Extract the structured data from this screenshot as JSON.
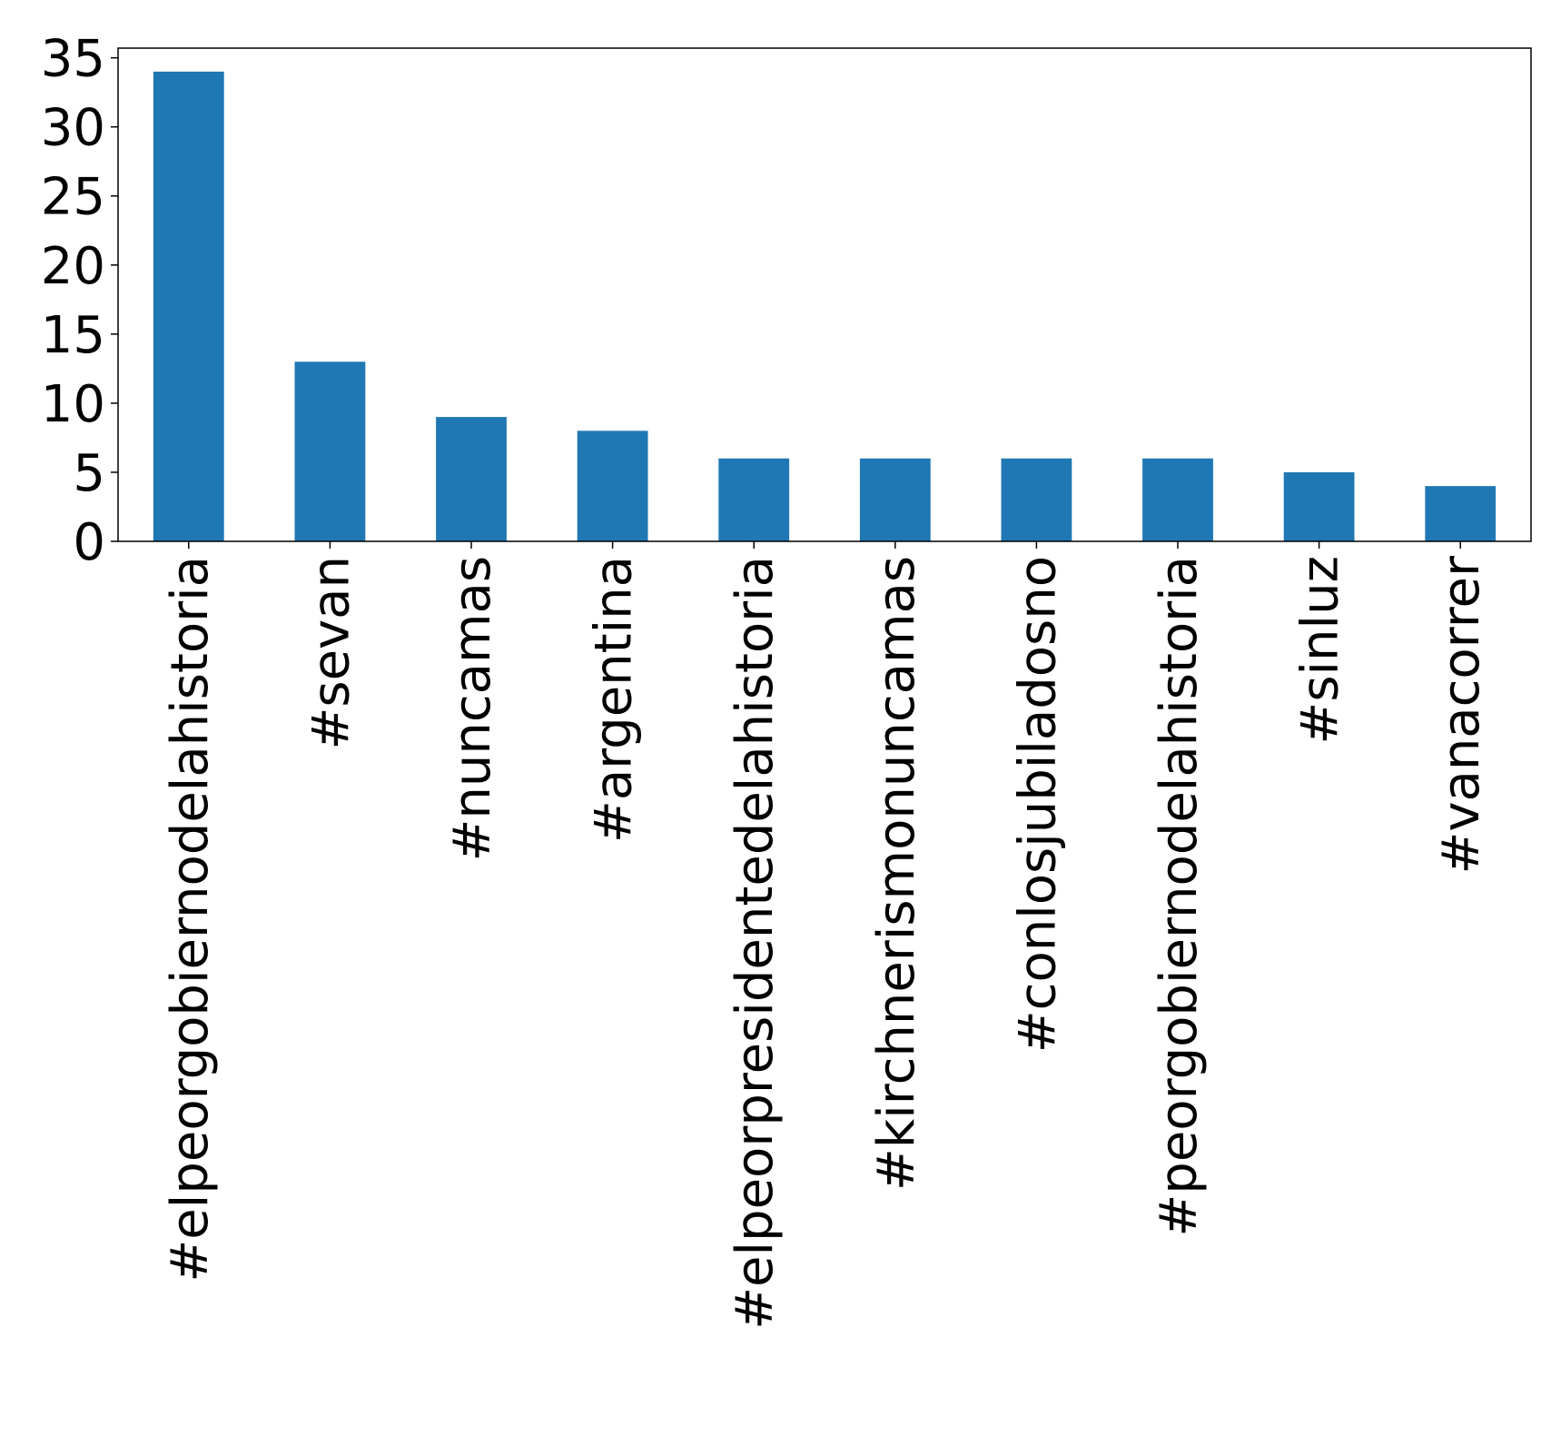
{
  "chart_data": {
    "type": "bar",
    "categories": [
      "#elpeorgobiernodelahistoria",
      "#sevan",
      "#nuncamas",
      "#argentina",
      "#elpeorpresidentedelahistoria",
      "#kirchnerismonuncamas",
      "#conlosjubiladosno",
      "#peorgobiernodelahistoria",
      "#sinluz",
      "#vanacorrer"
    ],
    "values": [
      34,
      13,
      9,
      8,
      6,
      6,
      6,
      6,
      5,
      4
    ],
    "yticks": [
      "0",
      "5",
      "10",
      "15",
      "20",
      "25",
      "30",
      "35"
    ],
    "ylim": [
      0,
      35.7
    ],
    "title": "",
    "xlabel": "",
    "ylabel": "",
    "grid": false,
    "legend": "none",
    "bar_color": "#1f77b4"
  }
}
